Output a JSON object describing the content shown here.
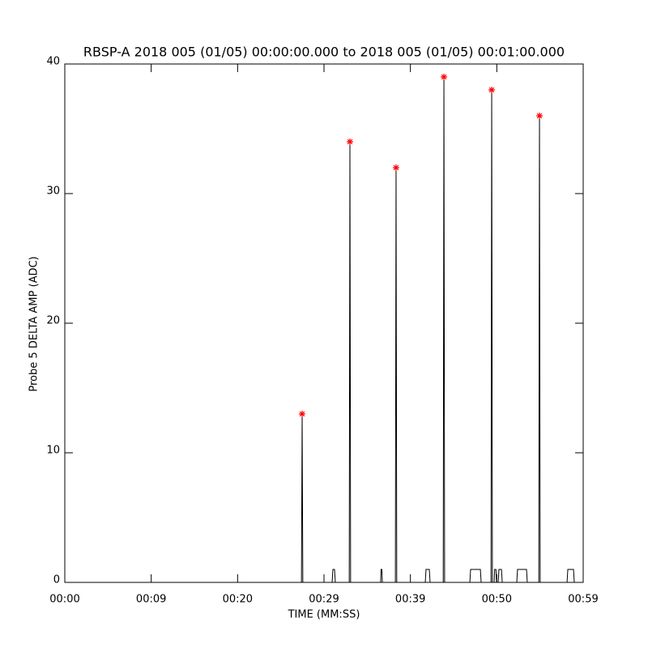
{
  "chart_data": {
    "type": "line",
    "title": "RBSP-A 2018 005 (01/05) 00:00:00.000 to 2018 005 (01/05) 00:01:00.000",
    "xlabel": "TIME (MM:SS)",
    "ylabel": "Probe 5 DELTA AMP (ADC)",
    "xlim": [
      0,
      60
    ],
    "ylim": [
      0,
      40
    ],
    "xticks": [
      {
        "value": 0,
        "label": "00:00"
      },
      {
        "value": 10,
        "label": "00:09"
      },
      {
        "value": 20,
        "label": "00:20"
      },
      {
        "value": 30,
        "label": "00:29"
      },
      {
        "value": 40,
        "label": "00:39"
      },
      {
        "value": 50,
        "label": "00:50"
      },
      {
        "value": 60,
        "label": "00:59"
      }
    ],
    "yticks": [
      0,
      10,
      20,
      30,
      40
    ],
    "series": [
      {
        "color": "#000000",
        "x": [
          0,
          27.39,
          27.47,
          27.55,
          30.94,
          31.03,
          31.22,
          31.31,
          32.92,
          33.0,
          33.08,
          36.56,
          36.6,
          36.7,
          36.75,
          38.26,
          38.34,
          38.42,
          41.72,
          41.81,
          42.19,
          42.28,
          43.8,
          43.88,
          43.96,
          46.88,
          46.97,
          48.1,
          48.19,
          49.33,
          49.41,
          49.49,
          49.69,
          49.75,
          49.9,
          49.97,
          50.16,
          50.25,
          50.54,
          50.63,
          52.31,
          52.4,
          53.44,
          53.53,
          54.86,
          54.94,
          55.02,
          58.13,
          58.22,
          58.88,
          58.97,
          60
        ],
        "values": [
          0,
          0,
          13,
          0,
          0,
          1,
          1,
          0,
          0,
          34,
          0,
          0,
          1,
          1,
          0,
          0,
          32,
          0,
          0,
          1,
          1,
          0,
          0,
          39,
          0,
          0,
          1,
          1,
          0,
          0,
          38,
          0,
          0,
          1,
          1,
          0,
          0,
          1,
          1,
          0,
          0,
          1,
          1,
          0,
          0,
          36,
          0,
          0,
          1,
          1,
          0,
          0
        ]
      },
      {
        "color": "#ff0000",
        "marker": "asterisk",
        "x": [
          27.47,
          33.0,
          38.34,
          43.88,
          49.41,
          54.94
        ],
        "values": [
          13,
          34,
          32,
          39,
          38,
          36
        ]
      }
    ]
  }
}
